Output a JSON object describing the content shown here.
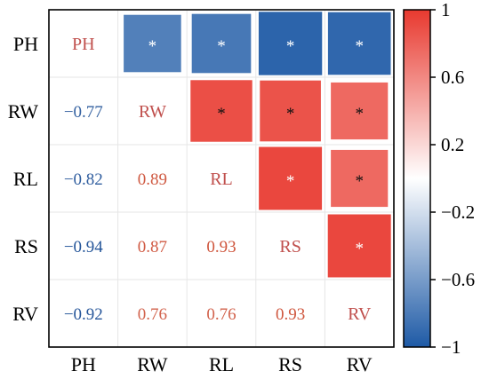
{
  "chart_data": {
    "type": "heatmap",
    "variables": [
      "PH",
      "RW",
      "RL",
      "RS",
      "RV"
    ],
    "correlations": [
      [
        1,
        -0.77,
        -0.82,
        -0.94,
        -0.92
      ],
      [
        -0.77,
        1,
        0.89,
        0.87,
        0.76
      ],
      [
        -0.82,
        0.89,
        1,
        0.93,
        0.76
      ],
      [
        -0.94,
        0.87,
        0.93,
        1,
        0.93
      ],
      [
        -0.92,
        0.76,
        0.76,
        0.93,
        1
      ]
    ],
    "correlation_labels": [
      [
        "",
        "",
        "",
        "",
        ""
      ],
      [
        "−0.77",
        "",
        "",
        "",
        ""
      ],
      [
        "−0.82",
        "0.89",
        "",
        "",
        ""
      ],
      [
        "−0.94",
        "0.87",
        "0.93",
        "",
        ""
      ],
      [
        "−0.92",
        "0.76",
        "0.76",
        "0.93",
        ""
      ]
    ],
    "significance": [
      [
        false,
        true,
        true,
        true,
        true
      ],
      [
        false,
        false,
        true,
        true,
        true
      ],
      [
        false,
        false,
        false,
        true,
        true
      ],
      [
        false,
        false,
        false,
        false,
        true
      ],
      [
        false,
        false,
        false,
        false,
        false
      ]
    ],
    "significance_marker": "*",
    "lower_triangle": "numbers",
    "upper_triangle": "squares",
    "colorbar": {
      "range": [
        -1,
        1
      ],
      "ticks": [
        1,
        0.6,
        0.2,
        -0.2,
        -0.6,
        -1
      ],
      "tick_labels": [
        "1",
        "0.6",
        "0.2",
        "−0.2",
        "−0.6",
        "−1"
      ],
      "placement": "right"
    },
    "colors": {
      "negative": "#1e5aa6",
      "neutral": "#ffffff",
      "positive": "#e8392f"
    },
    "grid": true
  }
}
